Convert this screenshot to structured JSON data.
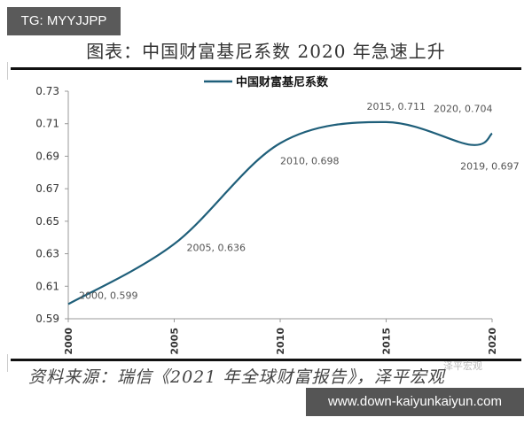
{
  "badge": {
    "label": "TG: MYYJJPP"
  },
  "header": {
    "title": "图表：中国财富基尼系数 2020 年急速上升"
  },
  "footer": {
    "source": "资料来源：瑞信《2021 年全球财富报告》，泽平宏观",
    "watermark": "泽平宏观",
    "url_badge": "www.down-kaiyunkaiyun.com"
  },
  "colors": {
    "line": "#1f5f7a",
    "axis": "#999999",
    "label": "#555555"
  },
  "chart_data": {
    "type": "line",
    "title": "图表：中国财富基尼系数 2020 年急速上升",
    "legend": [
      "中国财富基尼系数"
    ],
    "legend_position": "top",
    "xlabel": "",
    "ylabel": "",
    "x_ticks": [
      "2000",
      "2005",
      "2010",
      "2015",
      "2020"
    ],
    "y_ticks": [
      "0.59",
      "0.61",
      "0.63",
      "0.65",
      "0.67",
      "0.69",
      "0.71",
      "0.73"
    ],
    "xlim": [
      2000,
      2020
    ],
    "ylim": [
      0.59,
      0.73
    ],
    "grid": false,
    "series": [
      {
        "name": "中国财富基尼系数",
        "x": [
          2000,
          2005,
          2010,
          2015,
          2019,
          2020
        ],
        "values": [
          0.599,
          0.636,
          0.698,
          0.711,
          0.697,
          0.704
        ]
      }
    ],
    "annotations": [
      {
        "text": "2000, 0.599",
        "x": 2000,
        "y": 0.599
      },
      {
        "text": "2005, 0.636",
        "x": 2005,
        "y": 0.636
      },
      {
        "text": "2010, 0.698",
        "x": 2010,
        "y": 0.698
      },
      {
        "text": "2015, 0.711",
        "x": 2015,
        "y": 0.711
      },
      {
        "text": "2019, 0.697",
        "x": 2019,
        "y": 0.697
      },
      {
        "text": "2020, 0.704",
        "x": 2020,
        "y": 0.704
      }
    ]
  }
}
